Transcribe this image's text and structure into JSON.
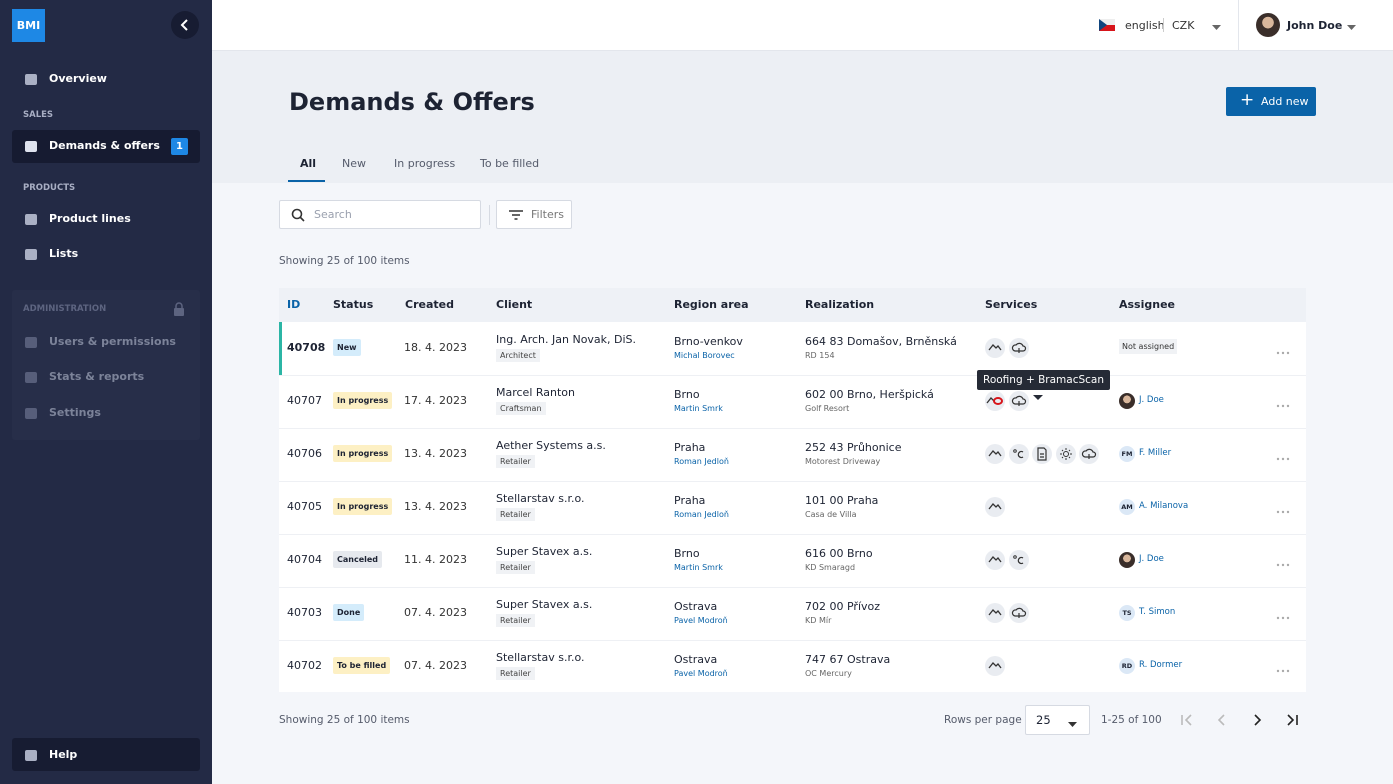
{
  "sidebar": {
    "logo": "BMI",
    "overview": "Overview",
    "sales_label": "SALES",
    "demands": "Demands & offers",
    "demands_badge": 1,
    "products_label": "PRODUCTS",
    "product_lines": "Product lines",
    "lists": "Lists",
    "admin_label": "ADMINISTRATION",
    "users": "Users & permissions",
    "stats": "Stats & reports",
    "settings": "Settings",
    "help": "Help"
  },
  "header": {
    "language": "english",
    "currency": "CZK",
    "user": "John Doe"
  },
  "page": {
    "title": "Demands & Offers",
    "add_button": "Add new",
    "tabs": [
      "All",
      "New",
      "In progress",
      "To be filled"
    ],
    "search_placeholder": "Search",
    "filters": "Filters",
    "showing": "Showing 25 of 100 items"
  },
  "table": {
    "columns": [
      "ID",
      "Status",
      "Created",
      "Client",
      "Region area",
      "Realization",
      "Services",
      "Assignee"
    ],
    "rows": [
      {
        "id": 40708,
        "status": "New",
        "created": "18. 4. 2023",
        "client": "Ing. Arch. Jan Novak, DiS.",
        "client_type": "Architect",
        "region": "Brno-venkov",
        "region_person": "Michal Borovec",
        "address": "664 83 Domašov, Brněnská",
        "address_note": "RD 154",
        "assignee": {
          "name": "Not assigned"
        }
      },
      {
        "id": 40707,
        "status": "In progress",
        "created": "17. 4. 2023",
        "client": "Marcel Ranton",
        "client_type": "Craftsman",
        "region": "Brno",
        "region_person": "Martin Smrk",
        "address": "602 00 Brno, Heršpická",
        "address_note": "Golf Resort",
        "assignee": {
          "name": "J. Doe"
        }
      },
      {
        "id": 40706,
        "status": "In progress",
        "created": "13. 4. 2023",
        "client": "Aether Systems a.s.",
        "client_type": "Retailer",
        "region": "Praha",
        "region_person": "Roman Jedloň",
        "address": "252 43 Průhonice",
        "address_note": "Motorest Driveway",
        "assignee": {
          "initials": "FM",
          "name": "F. Miller"
        }
      },
      {
        "id": 40705,
        "status": "In progress",
        "created": "13. 4. 2023",
        "client": "Stellarstav s.r.o.",
        "client_type": "Retailer",
        "region": "Praha",
        "region_person": "Roman Jedloň",
        "address": "101 00 Praha",
        "address_note": "Casa de Villa",
        "assignee": {
          "initials": "AM",
          "name": "A. Milanova"
        }
      },
      {
        "id": 40704,
        "status": "Canceled",
        "created": "11. 4. 2023",
        "client": "Super Stavex a.s.",
        "client_type": "Retailer",
        "region": "Brno",
        "region_person": "Martin Smrk",
        "address": "616 00 Brno",
        "address_note": "KD Smaragd",
        "assignee": {
          "name": "J. Doe"
        }
      },
      {
        "id": 40703,
        "status": "Done",
        "created": "07. 4. 2023",
        "client": "Super Stavex a.s.",
        "client_type": "Retailer",
        "region": "Ostrava",
        "region_person": "Pavel Modroň",
        "address": "702 00 Přívoz",
        "address_note": "KD Mír",
        "assignee": {
          "initials": "TS",
          "name": "T. Simon"
        }
      },
      {
        "id": 40702,
        "status": "To be filled",
        "created": "07. 4. 2023",
        "client": "Stellarstav s.r.o.",
        "client_type": "Retailer",
        "region": "Ostrava",
        "region_person": "Pavel Modroň",
        "address": "747 67 Ostrava",
        "address_note": "OC Mercury",
        "assignee": {
          "initials": "RD",
          "name": "R. Dormer"
        }
      }
    ]
  },
  "tooltip": "Roofing + BramacScan",
  "pagination": {
    "showing": "Showing 25 of 100 items",
    "rows_per_page_label": "Rows per page",
    "rows_per_page": 25,
    "range": "1-25 of 100"
  }
}
